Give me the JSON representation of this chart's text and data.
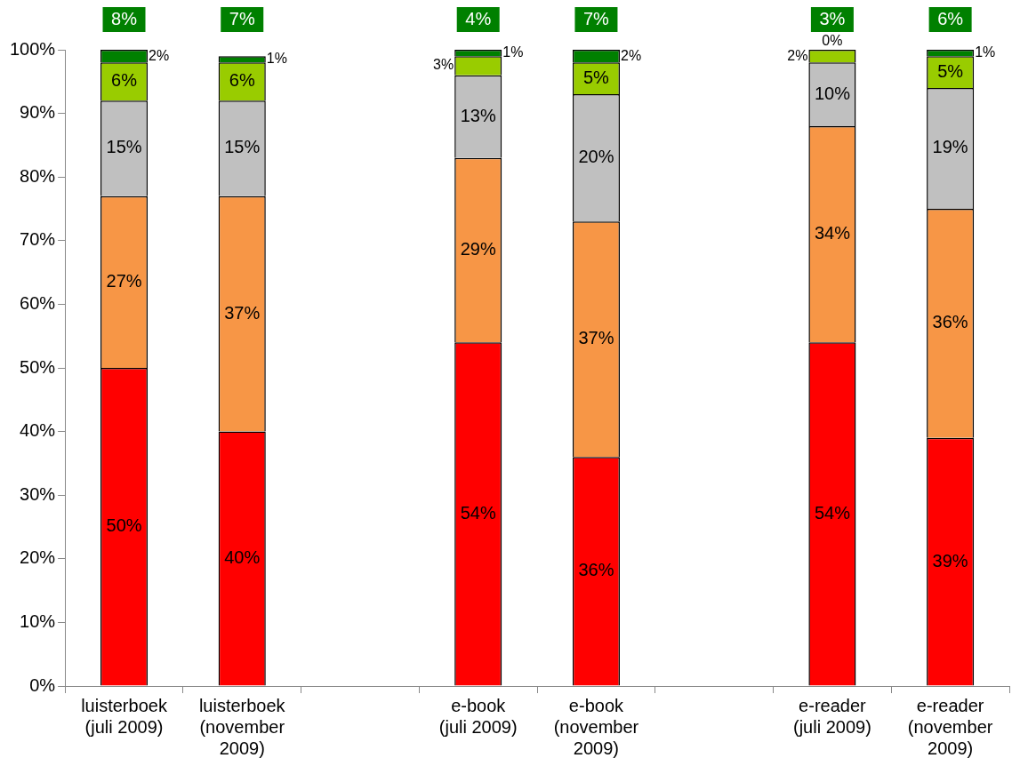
{
  "chart_data": {
    "type": "bar",
    "stacked": true,
    "categories": [
      "luisterboek (juli 2009)",
      "luisterboek (november 2009)",
      null,
      "e-book (juli 2009)",
      "e-book (november 2009)",
      null,
      "e-reader (juli 2009)",
      "e-reader (november 2009)"
    ],
    "series": [
      {
        "color": "#ff0000",
        "values": [
          50,
          40,
          null,
          54,
          36,
          null,
          54,
          39
        ],
        "value_labels": [
          "50%",
          "40%",
          null,
          "54%",
          "36%",
          null,
          "54%",
          "39%"
        ]
      },
      {
        "color": "#f79646",
        "values": [
          27,
          37,
          null,
          29,
          37,
          null,
          34,
          36
        ],
        "value_labels": [
          "27%",
          "37%",
          null,
          "29%",
          "37%",
          null,
          "34%",
          "36%"
        ]
      },
      {
        "color": "#c0c0c0",
        "values": [
          15,
          15,
          null,
          13,
          20,
          null,
          10,
          19
        ],
        "value_labels": [
          "15%",
          "15%",
          null,
          "13%",
          "20%",
          null,
          "10%",
          "19%"
        ]
      },
      {
        "color": "#99cc00",
        "values": [
          6,
          6,
          null,
          3,
          5,
          null,
          2,
          5
        ],
        "value_labels": [
          "6%",
          "6%",
          null,
          "3%",
          "5%",
          null,
          "2%",
          "5%"
        ]
      },
      {
        "color": "#008000",
        "values": [
          2,
          1,
          null,
          1,
          2,
          null,
          0,
          1
        ],
        "value_labels": [
          "2%",
          "1%",
          null,
          "1%",
          "2%",
          null,
          "0%",
          "1%"
        ]
      }
    ],
    "ylim": [
      0,
      100
    ],
    "yticks": [
      {
        "value": 0,
        "label": "0%"
      },
      {
        "value": 10,
        "label": "10%"
      },
      {
        "value": 20,
        "label": "20%"
      },
      {
        "value": 30,
        "label": "30%"
      },
      {
        "value": 40,
        "label": "40%"
      },
      {
        "value": 50,
        "label": "50%"
      },
      {
        "value": 60,
        "label": "60%"
      },
      {
        "value": 70,
        "label": "70%"
      },
      {
        "value": 80,
        "label": "80%"
      },
      {
        "value": 90,
        "label": "90%"
      },
      {
        "value": 100,
        "label": "100%"
      }
    ],
    "annotations": [
      "8%",
      "7%",
      "4%",
      "7%",
      "3%",
      "6%"
    ]
  }
}
